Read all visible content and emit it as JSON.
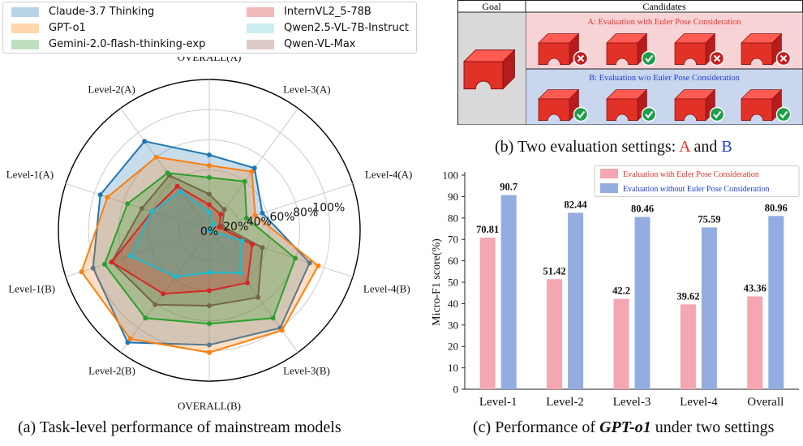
{
  "colors": {
    "claude": "#1f77b4",
    "gpt": "#ff7f0e",
    "gemini": "#2ca02c",
    "intern": "#d62728",
    "qwen7b": "#17becf",
    "qwenmax": "#8c564b",
    "barA": "#f4a6b1",
    "barB": "#93ade1",
    "red": "#e8322e",
    "blue": "#1f3fd8"
  },
  "panel_a": {
    "caption": "(a) Task-level performance of mainstream models",
    "legend": [
      "Claude-3.7 Thinking",
      "GPT-o1",
      "Gemini-2.0-flash-thinking-exp",
      "InternVL2_5-78B",
      "Qwen2.5-VL-7B-Instruct",
      "Qwen-VL-Max"
    ]
  },
  "panel_b": {
    "caption_prefix": "(b) Two evaluation settings: ",
    "caption_a": "A",
    "caption_and": " and ",
    "caption_b": "B",
    "goal_header": "Goal",
    "candidates_header": "Candidates",
    "row_a_title": "A: Evaluation with Euler Pose Consideration",
    "row_b_title": "B: Evaluation w/o Euler Pose Consideration",
    "row_a_marks": [
      "cross",
      "check",
      "cross",
      "cross"
    ],
    "row_b_marks": [
      "check",
      "check",
      "check",
      "check"
    ]
  },
  "panel_c": {
    "caption_prefix": "(c) Performance of ",
    "caption_model": "GPT-o1",
    "caption_suffix": " under two settings"
  },
  "chart_data": [
    {
      "type": "radar",
      "axes": [
        "OVERALL(A)",
        "Level-3(A)",
        "Level-4(A)",
        "Level-4(B)",
        "Level-3(B)",
        "OVERALL(B)",
        "Level-2(B)",
        "Level-1(B)",
        "Level-1(A)",
        "Level-2(A)"
      ],
      "radial_ticks": [
        "0%",
        "20%",
        "40%",
        "60%",
        "80%",
        "100%"
      ],
      "rlim": [
        0,
        100
      ],
      "grid": true,
      "legend_position": "top-left",
      "series": [
        {
          "name": "Claude-3.7 Thinking",
          "values": [
            50,
            51,
            37,
            70,
            80,
            76,
            92,
            81,
            76,
            73
          ]
        },
        {
          "name": "GPT-o1",
          "values": [
            43,
            48,
            32,
            76,
            82,
            81,
            89,
            89,
            71,
            60
          ]
        },
        {
          "name": "Gemini-2.0-flash-thinking-exp",
          "values": [
            35,
            40,
            26,
            60,
            72,
            62,
            72,
            73,
            57,
            47
          ]
        },
        {
          "name": "InternVL2_5-78B",
          "values": [
            17,
            13,
            7,
            30,
            43,
            40,
            52,
            68,
            40,
            36
          ]
        },
        {
          "name": "Qwen2.5-VL-7B-Instruct",
          "values": [
            12,
            5,
            0,
            23,
            35,
            28,
            38,
            55,
            40,
            32
          ]
        },
        {
          "name": "Qwen-VL-Max",
          "values": [
            24,
            17,
            9,
            37,
            55,
            50,
            61,
            68,
            47,
            45
          ]
        }
      ]
    },
    {
      "type": "bar",
      "categories": [
        "Level-1",
        "Level-2",
        "Level-3",
        "Level-4",
        "Overall"
      ],
      "series": [
        {
          "name": "Evaluation with Euler Pose Consideration",
          "values": [
            70.81,
            51.42,
            42.2,
            39.62,
            43.36
          ]
        },
        {
          "name": "Evaluation without Euler Pose Consideration",
          "values": [
            90.7,
            82.44,
            80.46,
            75.59,
            80.96
          ]
        }
      ],
      "value_labels": [
        [
          "70.81",
          "51.42",
          "42.2",
          "39.62",
          "43.36"
        ],
        [
          "90.7",
          "82.44",
          "80.46",
          "75.59",
          "80.96"
        ]
      ],
      "yticks": [
        "0",
        "10",
        "20",
        "30",
        "40",
        "50",
        "60",
        "70",
        "80",
        "90",
        "100"
      ],
      "ylabel": "Micro-F1 score(%)",
      "ylim": [
        0,
        100
      ],
      "legend_position": "top-right"
    }
  ]
}
